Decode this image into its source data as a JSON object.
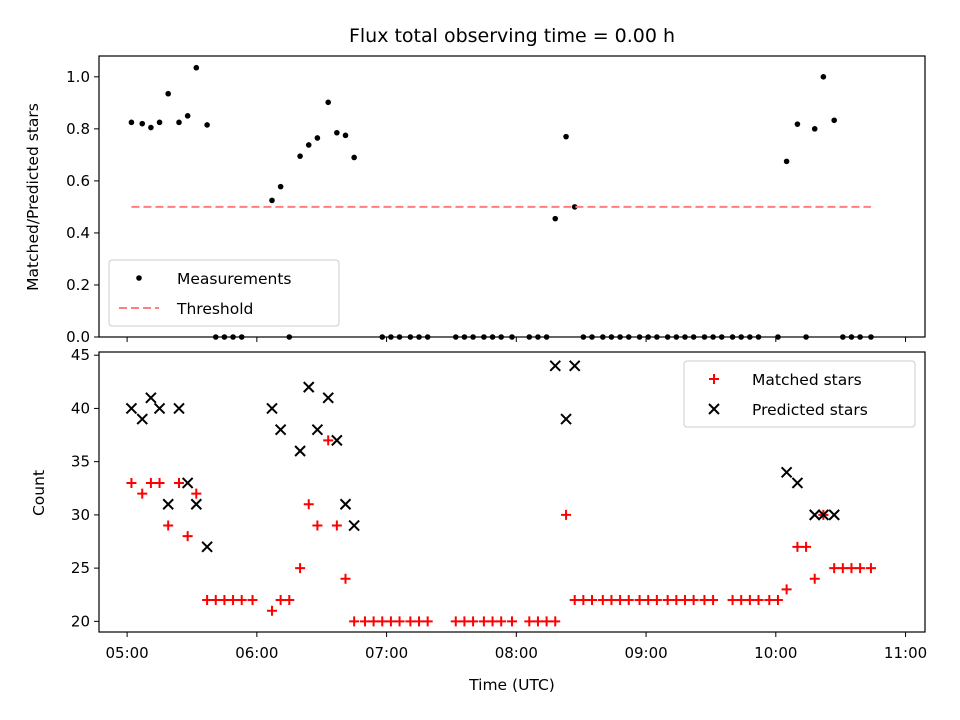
{
  "chart_data": [
    {
      "type": "scatter",
      "title": "Flux total observing time = 0.00 h",
      "xlabel": "",
      "ylabel": "Matched/Predicted stars",
      "ylim": [
        0,
        1.08
      ],
      "xlim": [
        "04:47",
        "11:09"
      ],
      "yticks": [
        "0.0",
        "0.2",
        "0.4",
        "0.6",
        "0.8",
        "1.0"
      ],
      "legend_position": "lower-left",
      "series": [
        {
          "name": "Measurements",
          "color": "#000000",
          "marker": "dot",
          "points": [
            [
              "05:02",
              0.825
            ],
            [
              "05:07",
              0.82
            ],
            [
              "05:11",
              0.805
            ],
            [
              "05:15",
              0.825
            ],
            [
              "05:19",
              0.935
            ],
            [
              "05:24",
              0.825
            ],
            [
              "05:28",
              0.85
            ],
            [
              "05:32",
              1.035
            ],
            [
              "05:37",
              0.815
            ],
            [
              "05:41",
              0.0
            ],
            [
              "05:45",
              0.0
            ],
            [
              "05:49",
              0.0
            ],
            [
              "05:53",
              0.0
            ],
            [
              "06:07",
              0.525
            ],
            [
              "06:11",
              0.578
            ],
            [
              "06:15",
              0.0
            ],
            [
              "06:20",
              0.695
            ],
            [
              "06:24",
              0.738
            ],
            [
              "06:28",
              0.765
            ],
            [
              "06:33",
              0.902
            ],
            [
              "06:37",
              0.785
            ],
            [
              "06:41",
              0.775
            ],
            [
              "06:45",
              0.69
            ],
            [
              "06:58",
              0.0
            ],
            [
              "07:02",
              0.0
            ],
            [
              "07:06",
              0.0
            ],
            [
              "07:11",
              0.0
            ],
            [
              "07:15",
              0.0
            ],
            [
              "07:19",
              0.0
            ],
            [
              "07:32",
              0.0
            ],
            [
              "07:36",
              0.0
            ],
            [
              "07:40",
              0.0
            ],
            [
              "07:45",
              0.0
            ],
            [
              "07:49",
              0.0
            ],
            [
              "07:53",
              0.0
            ],
            [
              "07:58",
              0.0
            ],
            [
              "08:06",
              0.0
            ],
            [
              "08:10",
              0.0
            ],
            [
              "08:14",
              0.0
            ],
            [
              "08:18",
              0.455
            ],
            [
              "08:23",
              0.77
            ],
            [
              "08:27",
              0.5
            ],
            [
              "08:31",
              0.0
            ],
            [
              "08:35",
              0.0
            ],
            [
              "08:40",
              0.0
            ],
            [
              "08:44",
              0.0
            ],
            [
              "08:48",
              0.0
            ],
            [
              "08:52",
              0.0
            ],
            [
              "08:57",
              0.0
            ],
            [
              "09:01",
              0.0
            ],
            [
              "09:05",
              0.0
            ],
            [
              "09:10",
              0.0
            ],
            [
              "09:14",
              0.0
            ],
            [
              "09:18",
              0.0
            ],
            [
              "09:22",
              0.0
            ],
            [
              "09:27",
              0.0
            ],
            [
              "09:31",
              0.0
            ],
            [
              "09:35",
              0.0
            ],
            [
              "09:40",
              0.0
            ],
            [
              "09:44",
              0.0
            ],
            [
              "09:48",
              0.0
            ],
            [
              "09:52",
              0.0
            ],
            [
              "10:01",
              0.0
            ],
            [
              "10:05",
              0.675
            ],
            [
              "10:10",
              0.818
            ],
            [
              "10:14",
              0.0
            ],
            [
              "10:18",
              0.8
            ],
            [
              "10:22",
              1.0
            ],
            [
              "10:27",
              0.833
            ],
            [
              "10:31",
              0.0
            ],
            [
              "10:35",
              0.0
            ],
            [
              "10:39",
              0.0
            ],
            [
              "10:44",
              0.0
            ]
          ]
        },
        {
          "name": "Threshold",
          "color": "#ff7f7f",
          "style": "dashed",
          "points": [
            [
              "05:02",
              0.5
            ],
            [
              "10:44",
              0.5
            ]
          ]
        }
      ]
    },
    {
      "type": "scatter",
      "title": "",
      "xlabel": "Time (UTC)",
      "ylabel": "Count",
      "ylim": [
        19,
        45.3
      ],
      "xlim": [
        "04:47",
        "11:09"
      ],
      "yticks": [
        "20",
        "25",
        "30",
        "35",
        "40",
        "45"
      ],
      "xticks": [
        "05:00",
        "06:00",
        "07:00",
        "08:00",
        "09:00",
        "10:00",
        "11:00"
      ],
      "legend_position": "top-right",
      "series": [
        {
          "name": "Matched stars",
          "color": "#ff0000",
          "marker": "plus",
          "points": [
            [
              "05:02",
              33
            ],
            [
              "05:07",
              32
            ],
            [
              "05:11",
              33
            ],
            [
              "05:15",
              33
            ],
            [
              "05:19",
              29
            ],
            [
              "05:24",
              33
            ],
            [
              "05:28",
              28
            ],
            [
              "05:32",
              32
            ],
            [
              "05:37",
              22
            ],
            [
              "05:41",
              22
            ],
            [
              "05:45",
              22
            ],
            [
              "05:49",
              22
            ],
            [
              "05:53",
              22
            ],
            [
              "05:58",
              22
            ],
            [
              "06:07",
              21
            ],
            [
              "06:11",
              22
            ],
            [
              "06:15",
              22
            ],
            [
              "06:20",
              25
            ],
            [
              "06:24",
              31
            ],
            [
              "06:28",
              29
            ],
            [
              "06:33",
              37
            ],
            [
              "06:37",
              29
            ],
            [
              "06:41",
              24
            ],
            [
              "06:45",
              20
            ],
            [
              "06:50",
              20
            ],
            [
              "06:54",
              20
            ],
            [
              "06:58",
              20
            ],
            [
              "07:02",
              20
            ],
            [
              "07:06",
              20
            ],
            [
              "07:11",
              20
            ],
            [
              "07:15",
              20
            ],
            [
              "07:19",
              20
            ],
            [
              "07:32",
              20
            ],
            [
              "07:36",
              20
            ],
            [
              "07:40",
              20
            ],
            [
              "07:45",
              20
            ],
            [
              "07:49",
              20
            ],
            [
              "07:53",
              20
            ],
            [
              "07:58",
              20
            ],
            [
              "08:06",
              20
            ],
            [
              "08:10",
              20
            ],
            [
              "08:14",
              20
            ],
            [
              "08:18",
              20
            ],
            [
              "08:23",
              30
            ],
            [
              "08:27",
              22
            ],
            [
              "08:31",
              22
            ],
            [
              "08:35",
              22
            ],
            [
              "08:40",
              22
            ],
            [
              "08:44",
              22
            ],
            [
              "08:48",
              22
            ],
            [
              "08:52",
              22
            ],
            [
              "08:57",
              22
            ],
            [
              "09:01",
              22
            ],
            [
              "09:05",
              22
            ],
            [
              "09:10",
              22
            ],
            [
              "09:14",
              22
            ],
            [
              "09:18",
              22
            ],
            [
              "09:22",
              22
            ],
            [
              "09:27",
              22
            ],
            [
              "09:31",
              22
            ],
            [
              "09:40",
              22
            ],
            [
              "09:44",
              22
            ],
            [
              "09:48",
              22
            ],
            [
              "09:52",
              22
            ],
            [
              "09:57",
              22
            ],
            [
              "10:01",
              22
            ],
            [
              "10:05",
              23
            ],
            [
              "10:10",
              27
            ],
            [
              "10:14",
              27
            ],
            [
              "10:18",
              24
            ],
            [
              "10:22",
              30
            ],
            [
              "10:27",
              25
            ],
            [
              "10:31",
              25
            ],
            [
              "10:35",
              25
            ],
            [
              "10:39",
              25
            ],
            [
              "10:44",
              25
            ]
          ]
        },
        {
          "name": "Predicted stars",
          "color": "#000000",
          "marker": "x",
          "points": [
            [
              "05:02",
              40
            ],
            [
              "05:07",
              39
            ],
            [
              "05:11",
              41
            ],
            [
              "05:15",
              40
            ],
            [
              "05:19",
              31
            ],
            [
              "05:24",
              40
            ],
            [
              "05:28",
              33
            ],
            [
              "05:32",
              31
            ],
            [
              "05:37",
              27
            ],
            [
              "06:07",
              40
            ],
            [
              "06:11",
              38
            ],
            [
              "06:20",
              36
            ],
            [
              "06:24",
              42
            ],
            [
              "06:28",
              38
            ],
            [
              "06:33",
              41
            ],
            [
              "06:37",
              37
            ],
            [
              "06:41",
              31
            ],
            [
              "06:45",
              29
            ],
            [
              "08:18",
              44
            ],
            [
              "08:23",
              39
            ],
            [
              "08:27",
              44
            ],
            [
              "10:05",
              34
            ],
            [
              "10:10",
              33
            ],
            [
              "10:18",
              30
            ],
            [
              "10:22",
              30
            ],
            [
              "10:27",
              30
            ]
          ]
        }
      ]
    }
  ]
}
